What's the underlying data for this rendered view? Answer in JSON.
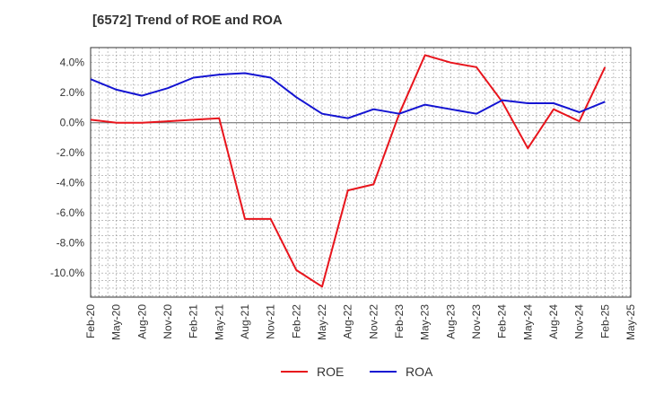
{
  "chart_data": {
    "type": "line",
    "title": "[6572]  Trend of ROE and ROA",
    "xlabel": "",
    "ylabel": "",
    "x": [
      "Feb-20",
      "May-20",
      "Aug-20",
      "Nov-20",
      "Feb-21",
      "May-21",
      "Aug-21",
      "Nov-21",
      "Feb-22",
      "May-22",
      "Aug-22",
      "Nov-22",
      "Feb-23",
      "May-23",
      "Aug-23",
      "Nov-23",
      "Feb-24",
      "May-24",
      "Aug-24",
      "Nov-24",
      "Feb-25",
      "May-25"
    ],
    "yticks": [
      "4.0%",
      "2.0%",
      "0.0%",
      "-2.0%",
      "-4.0%",
      "-6.0%",
      "-8.0%",
      "-10.0%"
    ],
    "ytick_values": [
      4,
      2,
      0,
      -2,
      -4,
      -6,
      -8,
      -10
    ],
    "ylim": [
      -11.6,
      5.0
    ],
    "grid": true,
    "legend_position": "bottom-center",
    "series": [
      {
        "name": "ROE",
        "color": "#e8141c",
        "values": [
          0.2,
          0.0,
          0.0,
          0.1,
          0.2,
          0.3,
          -6.4,
          -6.4,
          -9.8,
          -10.9,
          -4.5,
          -4.1,
          0.6,
          4.5,
          4.0,
          3.7,
          1.4,
          -1.7,
          0.9,
          0.1,
          3.7,
          null
        ]
      },
      {
        "name": "ROA",
        "color": "#1414d2",
        "values": [
          2.9,
          2.2,
          1.8,
          2.3,
          3.0,
          3.2,
          3.3,
          3.0,
          1.7,
          0.6,
          0.3,
          0.9,
          0.6,
          1.2,
          0.9,
          0.6,
          1.5,
          1.3,
          1.3,
          0.7,
          1.4,
          null
        ]
      }
    ]
  }
}
